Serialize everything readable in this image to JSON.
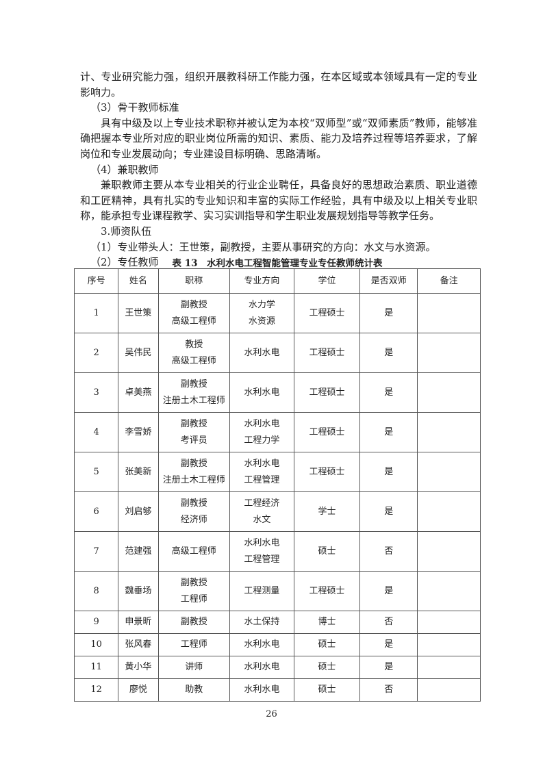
{
  "paragraphs": [
    {
      "text": "计、专业研究能力强，组织开展教科研工作能力强，在本区域或本领域具有一定的专业影响力。",
      "indent": "none"
    },
    {
      "text": "（3）骨干教师标准",
      "indent": "heading"
    },
    {
      "text": "具有中级及以上专业技术职称并被认定为本校“双师型”或“双师素质”教师，能够准确把握本专业所对应的职业岗位所需的知识、素质、能力及培养过程等培养要求，了解岗位和专业发展动向；专业建设目标明确、思路清晰。",
      "indent": "para"
    },
    {
      "text": "（4）兼职教师",
      "indent": "heading"
    },
    {
      "text": "兼职教师主要从本专业相关的行业企业聘任，具备良好的思想政治素质、职业道德和工匠精神，具有扎实的专业知识和丰富的实际工作经验，具有中级及以上相关专业职称，能承担专业课程教学、实习实训指导和学生职业发展规划指导等教学任务。",
      "indent": "para"
    },
    {
      "text": "3.师资队伍",
      "indent": "para"
    },
    {
      "text": "（1）专业带头人：王世策，副教授，主要从事研究的方向：水文与水资源。",
      "indent": "heading"
    },
    {
      "text": "（2）专任教师",
      "indent": "heading"
    }
  ],
  "table": {
    "caption": "表 13　水利水电工程智能管理专业专任教师统计表",
    "headers": [
      "序号",
      "姓名",
      "职称",
      "专业方向",
      "学位",
      "是否双师",
      "备注"
    ],
    "rows": [
      [
        "1",
        "王世策",
        [
          "副教授",
          "高级工程师"
        ],
        [
          "水力学",
          "水资源"
        ],
        "工程硕士",
        "是",
        ""
      ],
      [
        "2",
        "吴伟民",
        [
          "教授",
          "高级工程师"
        ],
        [
          "水利水电"
        ],
        "工程硕士",
        "是",
        ""
      ],
      [
        "3",
        "卓美燕",
        [
          "副教授",
          "注册土木工程师"
        ],
        [
          "水利水电"
        ],
        "工程硕士",
        "是",
        ""
      ],
      [
        "4",
        "李雪娇",
        [
          "副教授",
          "考评员"
        ],
        [
          "水利水电",
          "工程力学"
        ],
        "工程硕士",
        "是",
        ""
      ],
      [
        "5",
        "张美新",
        [
          "副教授",
          "注册土木工程师"
        ],
        [
          "水利水电",
          "工程管理"
        ],
        "工程硕士",
        "是",
        ""
      ],
      [
        "6",
        "刘启够",
        [
          "副教授",
          "经济师"
        ],
        [
          "工程经济",
          "水文"
        ],
        "学士",
        "是",
        ""
      ],
      [
        "7",
        "范建强",
        [
          "高级工程师"
        ],
        [
          "水利水电",
          "工程管理"
        ],
        "硕士",
        "否",
        ""
      ],
      [
        "8",
        "魏垂场",
        [
          "副教授",
          "工程师"
        ],
        [
          "工程测量"
        ],
        "工程硕士",
        "是",
        ""
      ],
      [
        "9",
        "申景昕",
        [
          "副教授"
        ],
        [
          "水土保持"
        ],
        "博士",
        "否",
        ""
      ],
      [
        "10",
        "张风春",
        [
          "工程师"
        ],
        [
          "水利水电"
        ],
        "硕士",
        "是",
        ""
      ],
      [
        "11",
        "黄小华",
        [
          "讲师"
        ],
        [
          "水利水电"
        ],
        "硕士",
        "是",
        ""
      ],
      [
        "12",
        "廖悦",
        [
          "助教"
        ],
        [
          "水利水电"
        ],
        "硕士",
        "否",
        ""
      ]
    ]
  },
  "page_number": "26"
}
